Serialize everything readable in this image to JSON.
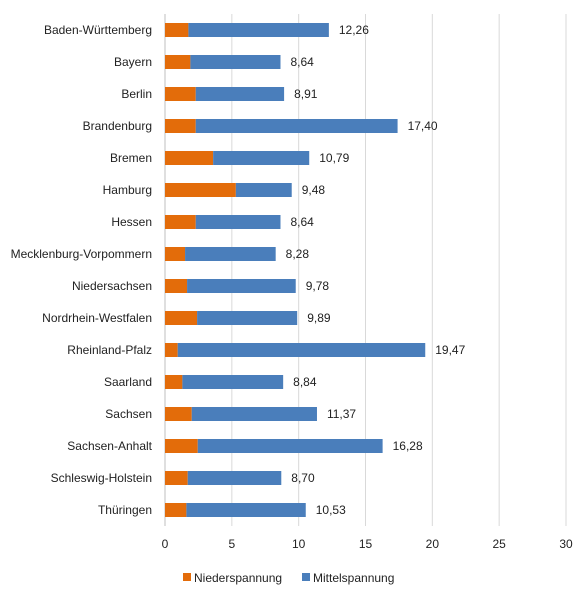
{
  "chart_data": {
    "type": "bar",
    "orientation": "horizontal",
    "stacked": true,
    "categories": [
      "Baden-Württemberg",
      "Bayern",
      "Berlin",
      "Brandenburg",
      "Bremen",
      "Hamburg",
      "Hessen",
      "Mecklenburg-Vorpommern",
      "Niedersachsen",
      "Nordrhein-Westfalen",
      "Rheinland-Pfalz",
      "Saarland",
      "Sachsen",
      "Sachsen-Anhalt",
      "Schleswig-Holstein",
      "Thüringen"
    ],
    "series": [
      {
        "name": "Niederspannung",
        "color": "#e36c0a",
        "values": [
          1.75,
          1.9,
          2.3,
          2.3,
          3.6,
          5.3,
          2.3,
          1.5,
          1.65,
          2.4,
          0.95,
          1.3,
          2.0,
          2.45,
          1.7,
          1.6
        ]
      },
      {
        "name": "Mittelspannung",
        "color": "#4a7ebb",
        "values": [
          10.51,
          6.74,
          6.61,
          15.1,
          7.19,
          4.18,
          6.34,
          6.78,
          8.13,
          7.49,
          18.52,
          7.54,
          9.37,
          13.83,
          7.0,
          8.93
        ]
      }
    ],
    "totals_labels": [
      "12,26",
      "8,64",
      "8,91",
      "17,40",
      "10,79",
      "9,48",
      "8,64",
      "8,28",
      "9,78",
      "9,89",
      "19,47",
      "8,84",
      "11,37",
      "16,28",
      "8,70",
      "10,53"
    ],
    "x_ticks": [
      "0",
      "5",
      "10",
      "15",
      "20",
      "25",
      "30"
    ],
    "xlim": [
      0,
      30
    ],
    "grid": true,
    "legend_position": "bottom"
  }
}
